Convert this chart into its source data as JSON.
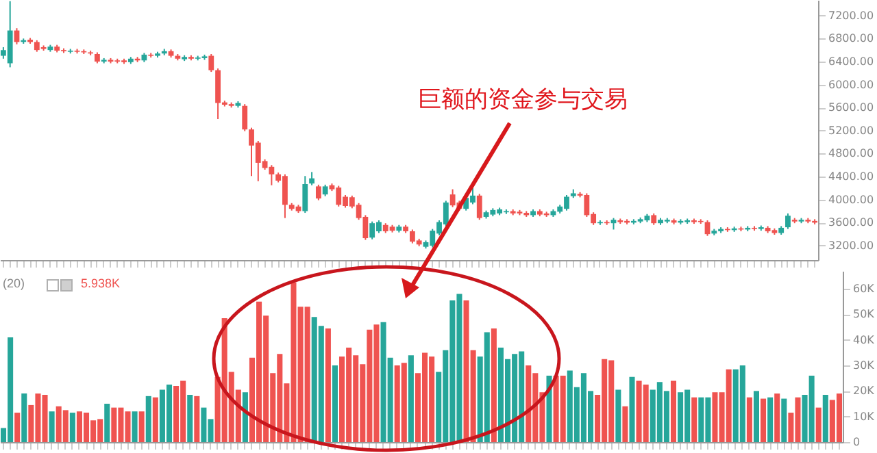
{
  "chart_data": [
    {
      "type": "candlestick",
      "categories": [
        null,
        null,
        null,
        null,
        null,
        null,
        null,
        null,
        null,
        null,
        null,
        null,
        null,
        null,
        null,
        null,
        null,
        null,
        null,
        null,
        null,
        null,
        null,
        null,
        null,
        null,
        null,
        null,
        null,
        null,
        null,
        null,
        null,
        null,
        null,
        null,
        null,
        null,
        null,
        null,
        null,
        null,
        null,
        null,
        null,
        null,
        null,
        null,
        null,
        null,
        null,
        null,
        null,
        null,
        null,
        null,
        null,
        null,
        null,
        null,
        null,
        null,
        null,
        null,
        null,
        null,
        null,
        null,
        null,
        null,
        null,
        null,
        null,
        null,
        null,
        null,
        null,
        null,
        null,
        null,
        null,
        null,
        null,
        null,
        null,
        null,
        null,
        null,
        null,
        null,
        null,
        null,
        null,
        null,
        null,
        null,
        null,
        null,
        null,
        null,
        null,
        null,
        null,
        null,
        null,
        null,
        null,
        null,
        null,
        null,
        null,
        null,
        null,
        null,
        null,
        null,
        null,
        null,
        null,
        null,
        null,
        null
      ],
      "ohlc": [
        [
          6500,
          6650,
          6450,
          6600
        ],
        [
          6370,
          7450,
          6300,
          6940
        ],
        [
          6940,
          6980,
          6700,
          6740
        ],
        [
          6740,
          6800,
          6710,
          6770
        ],
        [
          6780,
          6810,
          6710,
          6740
        ],
        [
          6740,
          6770,
          6570,
          6600
        ],
        [
          6650,
          6680,
          6590,
          6620
        ],
        [
          6600,
          6690,
          6570,
          6660
        ],
        [
          6660,
          6690,
          6560,
          6590
        ],
        [
          6600,
          6630,
          6550,
          6580
        ],
        [
          6570,
          6620,
          6540,
          6590
        ],
        [
          6590,
          6620,
          6540,
          6570
        ],
        [
          6580,
          6610,
          6530,
          6560
        ],
        [
          6560,
          6590,
          6510,
          6540
        ],
        [
          6530,
          6560,
          6370,
          6400
        ],
        [
          6400,
          6460,
          6370,
          6430
        ],
        [
          6430,
          6460,
          6370,
          6400
        ],
        [
          6420,
          6450,
          6370,
          6400
        ],
        [
          6420,
          6450,
          6360,
          6390
        ],
        [
          6390,
          6480,
          6360,
          6450
        ],
        [
          6450,
          6480,
          6390,
          6420
        ],
        [
          6420,
          6550,
          6390,
          6520
        ],
        [
          6520,
          6550,
          6470,
          6500
        ],
        [
          6500,
          6570,
          6470,
          6540
        ],
        [
          6540,
          6620,
          6510,
          6580
        ],
        [
          6580,
          6610,
          6470,
          6500
        ],
        [
          6500,
          6530,
          6420,
          6450
        ],
        [
          6440,
          6510,
          6410,
          6480
        ],
        [
          6480,
          6510,
          6420,
          6450
        ],
        [
          6450,
          6500,
          6420,
          6470
        ],
        [
          6460,
          6520,
          6430,
          6490
        ],
        [
          6500,
          6530,
          6220,
          6250
        ],
        [
          6250,
          6280,
          5400,
          5680
        ],
        [
          5690,
          5720,
          5620,
          5650
        ],
        [
          5660,
          5690,
          5600,
          5630
        ],
        [
          5630,
          5710,
          5600,
          5680
        ],
        [
          5630,
          5660,
          5190,
          5220
        ],
        [
          5220,
          5250,
          4410,
          4940
        ],
        [
          4990,
          5020,
          4320,
          4640
        ],
        [
          4670,
          4700,
          4520,
          4550
        ],
        [
          4570,
          4600,
          4250,
          4440
        ],
        [
          4440,
          4470,
          4300,
          4330
        ],
        [
          4410,
          4440,
          3680,
          3910
        ],
        [
          3910,
          3940,
          3810,
          3840
        ],
        [
          3880,
          3910,
          3770,
          3800
        ],
        [
          3800,
          4410,
          3770,
          4270
        ],
        [
          4280,
          4480,
          4250,
          4370
        ],
        [
          4230,
          4260,
          3990,
          4020
        ],
        [
          4090,
          4260,
          4060,
          4230
        ],
        [
          4250,
          4280,
          4150,
          4180
        ],
        [
          4210,
          4240,
          3880,
          3910
        ],
        [
          4050,
          4080,
          3860,
          3890
        ],
        [
          4040,
          4070,
          3850,
          3880
        ],
        [
          3910,
          3940,
          3650,
          3680
        ],
        [
          3700,
          3730,
          3300,
          3330
        ],
        [
          3340,
          3620,
          3310,
          3590
        ],
        [
          3450,
          3640,
          3420,
          3610
        ],
        [
          3560,
          3590,
          3420,
          3450
        ],
        [
          3530,
          3560,
          3430,
          3460
        ],
        [
          3460,
          3560,
          3430,
          3530
        ],
        [
          3530,
          3560,
          3420,
          3450
        ],
        [
          3450,
          3480,
          3240,
          3270
        ],
        [
          3290,
          3320,
          3190,
          3220
        ],
        [
          3180,
          3290,
          3150,
          3260
        ],
        [
          3200,
          3490,
          3170,
          3460
        ],
        [
          3410,
          3640,
          3380,
          3610
        ],
        [
          3570,
          3980,
          3540,
          3950
        ],
        [
          4090,
          4180,
          3870,
          3900
        ],
        [
          3950,
          3980,
          3810,
          3840
        ],
        [
          3840,
          4060,
          3810,
          4030
        ],
        [
          3950,
          4200,
          3920,
          4070
        ],
        [
          4070,
          4100,
          3650,
          3680
        ],
        [
          3700,
          3810,
          3670,
          3780
        ],
        [
          3740,
          3850,
          3710,
          3820
        ],
        [
          3760,
          3860,
          3730,
          3830
        ],
        [
          3780,
          3830,
          3750,
          3800
        ],
        [
          3800,
          3830,
          3730,
          3760
        ],
        [
          3790,
          3820,
          3730,
          3760
        ],
        [
          3770,
          3800,
          3700,
          3730
        ],
        [
          3730,
          3830,
          3700,
          3800
        ],
        [
          3800,
          3830,
          3710,
          3740
        ],
        [
          3760,
          3790,
          3700,
          3730
        ],
        [
          3730,
          3830,
          3700,
          3800
        ],
        [
          3790,
          3910,
          3760,
          3880
        ],
        [
          3840,
          4080,
          3810,
          4050
        ],
        [
          4060,
          4180,
          4030,
          4110
        ],
        [
          4100,
          4130,
          4040,
          4070
        ],
        [
          4080,
          4110,
          3700,
          3730
        ],
        [
          3750,
          3780,
          3560,
          3590
        ],
        [
          3590,
          3640,
          3560,
          3610
        ],
        [
          3610,
          3640,
          3560,
          3590
        ],
        [
          3590,
          3680,
          3480,
          3650
        ],
        [
          3640,
          3670,
          3580,
          3610
        ],
        [
          3630,
          3660,
          3570,
          3600
        ],
        [
          3600,
          3660,
          3570,
          3630
        ],
        [
          3620,
          3690,
          3590,
          3660
        ],
        [
          3640,
          3750,
          3610,
          3720
        ],
        [
          3730,
          3760,
          3560,
          3590
        ],
        [
          3590,
          3680,
          3560,
          3650
        ],
        [
          3620,
          3680,
          3590,
          3650
        ],
        [
          3640,
          3670,
          3570,
          3600
        ],
        [
          3600,
          3660,
          3570,
          3630
        ],
        [
          3610,
          3670,
          3580,
          3640
        ],
        [
          3640,
          3670,
          3580,
          3610
        ],
        [
          3630,
          3660,
          3580,
          3610
        ],
        [
          3610,
          3640,
          3370,
          3400
        ],
        [
          3410,
          3490,
          3380,
          3460
        ],
        [
          3450,
          3520,
          3420,
          3490
        ],
        [
          3490,
          3520,
          3440,
          3470
        ],
        [
          3470,
          3530,
          3440,
          3500
        ],
        [
          3500,
          3530,
          3450,
          3480
        ],
        [
          3480,
          3540,
          3450,
          3510
        ],
        [
          3510,
          3540,
          3460,
          3490
        ],
        [
          3490,
          3550,
          3460,
          3520
        ],
        [
          3510,
          3540,
          3420,
          3450
        ],
        [
          3470,
          3500,
          3390,
          3420
        ],
        [
          3420,
          3540,
          3390,
          3510
        ],
        [
          3520,
          3760,
          3490,
          3720
        ],
        [
          3650,
          3680,
          3590,
          3620
        ],
        [
          3620,
          3680,
          3590,
          3650
        ],
        [
          3650,
          3680,
          3590,
          3620
        ],
        [
          3630,
          3660,
          3570,
          3600
        ]
      ],
      "colors": [
        "#26a69a",
        "#26a69a",
        "#ef5350",
        "#26a69a",
        "#ef5350",
        "#ef5350",
        "#ef5350",
        "#26a69a",
        "#ef5350",
        "#ef5350",
        "#26a69a",
        "#ef5350",
        "#ef5350",
        "#ef5350",
        "#ef5350",
        "#26a69a",
        "#ef5350",
        "#ef5350",
        "#ef5350",
        "#26a69a",
        "#ef5350",
        "#26a69a",
        "#ef5350",
        "#26a69a",
        "#26a69a",
        "#ef5350",
        "#ef5350",
        "#26a69a",
        "#ef5350",
        "#26a69a",
        "#26a69a",
        "#ef5350",
        "#ef5350",
        "#ef5350",
        "#ef5350",
        "#26a69a",
        "#ef5350",
        "#ef5350",
        "#ef5350",
        "#ef5350",
        "#ef5350",
        "#ef5350",
        "#ef5350",
        "#ef5350",
        "#ef5350",
        "#26a69a",
        "#26a69a",
        "#ef5350",
        "#26a69a",
        "#ef5350",
        "#ef5350",
        "#ef5350",
        "#ef5350",
        "#ef5350",
        "#ef5350",
        "#26a69a",
        "#26a69a",
        "#ef5350",
        "#ef5350",
        "#26a69a",
        "#ef5350",
        "#ef5350",
        "#ef5350",
        "#26a69a",
        "#26a69a",
        "#26a69a",
        "#26a69a",
        "#ef5350",
        "#ef5350",
        "#26a69a",
        "#26a69a",
        "#ef5350",
        "#26a69a",
        "#26a69a",
        "#26a69a",
        "#26a69a",
        "#ef5350",
        "#ef5350",
        "#ef5350",
        "#26a69a",
        "#ef5350",
        "#ef5350",
        "#26a69a",
        "#26a69a",
        "#26a69a",
        "#26a69a",
        "#ef5350",
        "#ef5350",
        "#ef5350",
        "#26a69a",
        "#ef5350",
        "#26a69a",
        "#ef5350",
        "#ef5350",
        "#26a69a",
        "#26a69a",
        "#26a69a",
        "#ef5350",
        "#26a69a",
        "#26a69a",
        "#ef5350",
        "#26a69a",
        "#26a69a",
        "#ef5350",
        "#ef5350",
        "#ef5350",
        "#26a69a",
        "#26a69a",
        "#ef5350",
        "#26a69a",
        "#ef5350",
        "#26a69a",
        "#ef5350",
        "#26a69a",
        "#ef5350",
        "#ef5350",
        "#26a69a",
        "#26a69a",
        "#ef5350",
        "#26a69a",
        "#ef5350",
        "#ef5350"
      ],
      "ylim": [
        2950,
        7470
      ],
      "yticks": [
        {
          "value": 3200,
          "label": "3200.00"
        },
        {
          "value": 3600,
          "label": "3600.00"
        },
        {
          "value": 4000,
          "label": "4000.00"
        },
        {
          "value": 4400,
          "label": "4400.00"
        },
        {
          "value": 4800,
          "label": "4800.00"
        },
        {
          "value": 5200,
          "label": "5200.00"
        },
        {
          "value": 5600,
          "label": "5600.00"
        },
        {
          "value": 6000,
          "label": "6000.00"
        },
        {
          "value": 6400,
          "label": "6400.00"
        },
        {
          "value": 6800,
          "label": "6800.00"
        },
        {
          "value": 7200,
          "label": "7200.00"
        }
      ],
      "tick_labels": "y",
      "annotations": [
        "巨额的资金参与交易"
      ]
    },
    {
      "type": "bar",
      "categories": [
        null,
        null,
        null,
        null,
        null,
        null,
        null,
        null,
        null,
        null,
        null,
        null,
        null,
        null,
        null,
        null,
        null,
        null,
        null,
        null,
        null,
        null,
        null,
        null,
        null,
        null,
        null,
        null,
        null,
        null,
        null,
        null,
        null,
        null,
        null,
        null,
        null,
        null,
        null,
        null,
        null,
        null,
        null,
        null,
        null,
        null,
        null,
        null,
        null,
        null,
        null,
        null,
        null,
        null,
        null,
        null,
        null,
        null,
        null,
        null,
        null,
        null,
        null,
        null,
        null,
        null,
        null,
        null,
        null,
        null,
        null,
        null,
        null,
        null,
        null,
        null,
        null,
        null,
        null,
        null,
        null,
        null,
        null,
        null,
        null,
        null,
        null,
        null,
        null,
        null,
        null,
        null,
        null,
        null,
        null,
        null,
        null,
        null,
        null,
        null,
        null,
        null,
        null,
        null,
        null,
        null,
        null,
        null,
        null,
        null,
        null,
        null,
        null,
        null,
        null,
        null,
        null,
        null,
        null,
        null,
        null,
        null
      ],
      "values": [
        5500,
        41000,
        11500,
        19000,
        14500,
        19000,
        18500,
        12000,
        14000,
        12500,
        11500,
        12000,
        11500,
        8500,
        9000,
        15000,
        13500,
        13500,
        12000,
        12000,
        12000,
        18000,
        17500,
        20500,
        22500,
        22000,
        24000,
        18500,
        18000,
        13500,
        9000,
        25500,
        48500,
        27500,
        20500,
        19500,
        33000,
        55000,
        49500,
        27000,
        34500,
        23000,
        62500,
        53000,
        53000,
        49000,
        45500,
        44500,
        30000,
        33500,
        37000,
        34000,
        30500,
        44000,
        46000,
        47000,
        33000,
        30000,
        31000,
        34000,
        27000,
        35000,
        33500,
        27500,
        36000,
        55500,
        58000,
        55500,
        36000,
        33500,
        43000,
        44500,
        37000,
        32500,
        34500,
        35500,
        30000,
        27000,
        19500,
        26000,
        26000,
        26000,
        28000,
        21500,
        27000,
        20000,
        18500,
        32500,
        32000,
        20500,
        14000,
        25500,
        24000,
        22500,
        20500,
        23500,
        20000,
        24000,
        19500,
        20500,
        17500,
        17500,
        17500,
        19500,
        19500,
        28500,
        28500,
        30000,
        17500,
        20000,
        17000,
        17500,
        19000,
        17000,
        11500,
        17500,
        18500,
        26000,
        13500,
        18500,
        16500,
        19000
      ],
      "colors": [
        "#26a69a",
        "#26a69a",
        "#ef5350",
        "#26a69a",
        "#ef5350",
        "#ef5350",
        "#ef5350",
        "#26a69a",
        "#ef5350",
        "#ef5350",
        "#26a69a",
        "#ef5350",
        "#ef5350",
        "#ef5350",
        "#ef5350",
        "#26a69a",
        "#ef5350",
        "#ef5350",
        "#ef5350",
        "#26a69a",
        "#ef5350",
        "#26a69a",
        "#ef5350",
        "#26a69a",
        "#26a69a",
        "#ef5350",
        "#ef5350",
        "#26a69a",
        "#ef5350",
        "#26a69a",
        "#26a69a",
        "#ef5350",
        "#ef5350",
        "#ef5350",
        "#ef5350",
        "#26a69a",
        "#ef5350",
        "#ef5350",
        "#ef5350",
        "#ef5350",
        "#ef5350",
        "#ef5350",
        "#ef5350",
        "#ef5350",
        "#ef5350",
        "#26a69a",
        "#26a69a",
        "#ef5350",
        "#26a69a",
        "#ef5350",
        "#ef5350",
        "#ef5350",
        "#ef5350",
        "#ef5350",
        "#ef5350",
        "#26a69a",
        "#26a69a",
        "#ef5350",
        "#ef5350",
        "#26a69a",
        "#ef5350",
        "#ef5350",
        "#ef5350",
        "#26a69a",
        "#26a69a",
        "#26a69a",
        "#26a69a",
        "#ef5350",
        "#ef5350",
        "#26a69a",
        "#26a69a",
        "#ef5350",
        "#26a69a",
        "#26a69a",
        "#26a69a",
        "#26a69a",
        "#ef5350",
        "#ef5350",
        "#ef5350",
        "#26a69a",
        "#ef5350",
        "#ef5350",
        "#26a69a",
        "#26a69a",
        "#26a69a",
        "#26a69a",
        "#ef5350",
        "#ef5350",
        "#ef5350",
        "#26a69a",
        "#ef5350",
        "#26a69a",
        "#ef5350",
        "#ef5350",
        "#26a69a",
        "#26a69a",
        "#26a69a",
        "#ef5350",
        "#26a69a",
        "#26a69a",
        "#ef5350",
        "#26a69a",
        "#26a69a",
        "#ef5350",
        "#ef5350",
        "#ef5350",
        "#26a69a",
        "#26a69a",
        "#ef5350",
        "#26a69a",
        "#ef5350",
        "#26a69a",
        "#ef5350",
        "#26a69a",
        "#ef5350",
        "#ef5350",
        "#26a69a",
        "#26a69a",
        "#ef5350",
        "#26a69a",
        "#ef5350",
        "#ef5350"
      ],
      "ylim": [
        0,
        67000
      ],
      "yticks": [
        {
          "value": 0,
          "label": "0"
        },
        {
          "value": 10000,
          "label": "10K"
        },
        {
          "value": 20000,
          "label": "20K"
        },
        {
          "value": 30000,
          "label": "30K"
        },
        {
          "value": 40000,
          "label": "40K"
        },
        {
          "value": 50000,
          "label": "50K"
        },
        {
          "value": 60000,
          "label": "60K"
        }
      ],
      "tick_labels": "y",
      "annotations": [
        "(20)",
        "5.938K"
      ]
    }
  ]
}
